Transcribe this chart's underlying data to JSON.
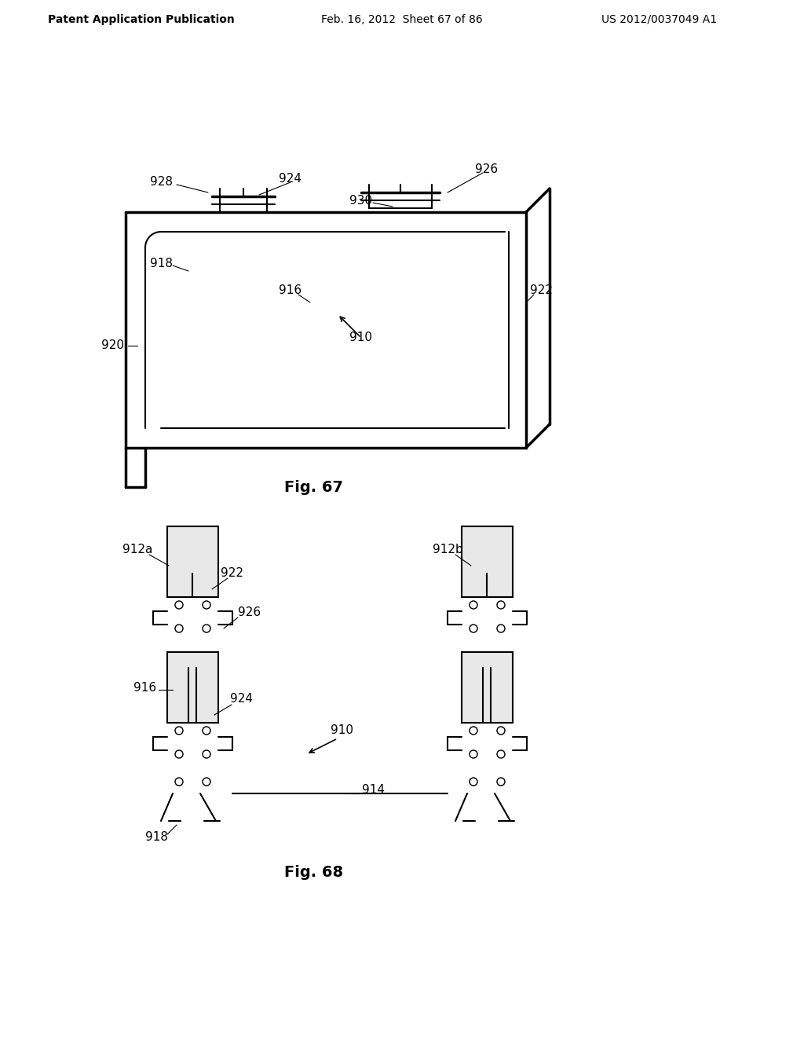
{
  "bg_color": "#ffffff",
  "text_color": "#000000",
  "header_left": "Patent Application Publication",
  "header_mid": "Feb. 16, 2012  Sheet 67 of 86",
  "header_right": "US 2012/0037049 A1",
  "fig67_caption": "Fig. 67",
  "fig68_caption": "Fig. 68",
  "line_color": "#000000",
  "line_width": 1.5,
  "thick_line": 2.5
}
